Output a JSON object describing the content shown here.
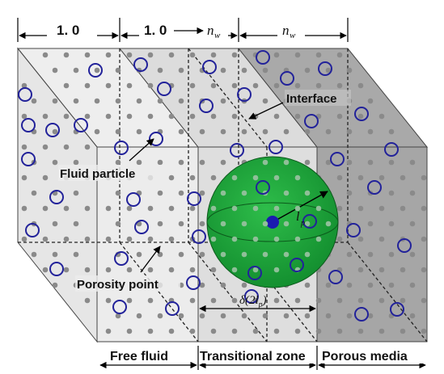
{
  "top_scale": {
    "seg1": "1. 0",
    "seg2_prefix": "1. 0",
    "seg2_suffix": "n",
    "seg2_sub": "w",
    "seg3": "n",
    "seg3_sub": "w"
  },
  "labels": {
    "interface": "Interface",
    "fluid_particle": "Fluid particle",
    "porosity_point": "Porosity point",
    "radius": "l",
    "radius_sub": "p",
    "width_prefix": "δ(2",
    "width_var": "l",
    "width_sub": "p",
    "width_suffix": ")"
  },
  "bottom_zones": {
    "free_fluid": "Free fluid",
    "transitional_zone": "Transitional zone",
    "porous_media": "Porous media"
  },
  "colors": {
    "free_fluid_face": "#ececec",
    "transitional_face": "#dedede",
    "porous_face": "#a8a8a8",
    "porosity_point": "#8a8a8a",
    "fluid_particle": "#22229a",
    "sphere": "#1ea83a",
    "sphere_center": "#1b1bb0"
  }
}
